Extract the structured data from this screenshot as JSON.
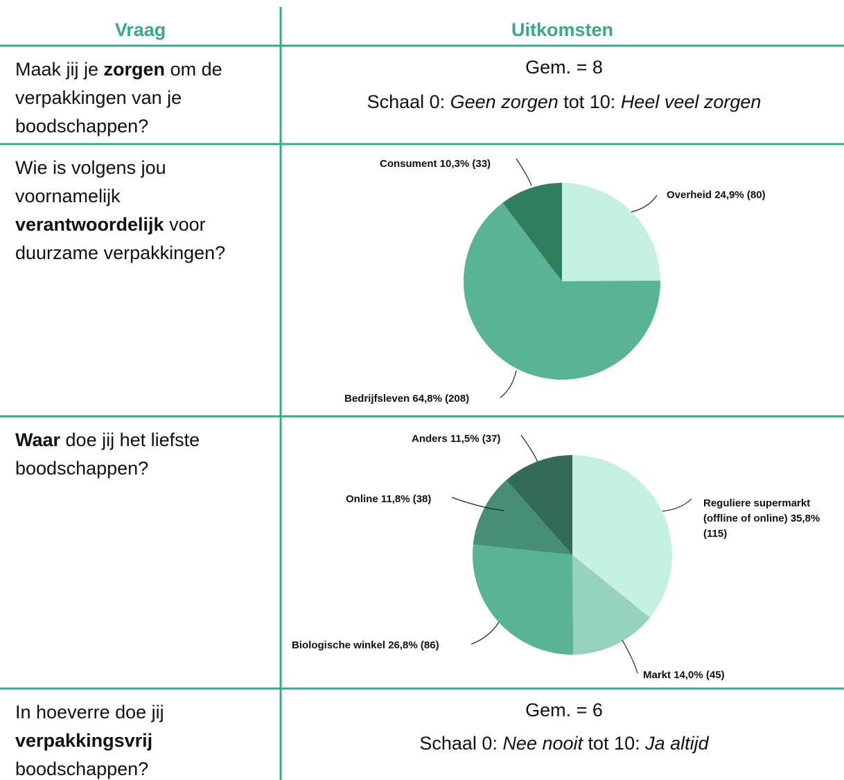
{
  "header": {
    "question": "Vraag",
    "results": "Uitkomsten"
  },
  "rows": [
    {
      "question": [
        {
          "text": "Maak jij je "
        },
        {
          "text": "zorgen",
          "bold": true
        },
        {
          "text": " om de verpakkingen van je boodschappen?"
        }
      ],
      "result": {
        "mean": "Gem. = 8",
        "scale": [
          {
            "text": "Schaal 0: "
          },
          {
            "text": "Geen zorgen",
            "italic": true
          },
          {
            "text": " tot 10: "
          },
          {
            "text": "Heel veel zorgen",
            "italic": true
          }
        ]
      }
    },
    {
      "question": [
        {
          "text": "Wie is volgens jou voornamelijk "
        },
        {
          "text": "verantwoordelijk",
          "bold": true
        },
        {
          "text": " voor duurzame verpakkingen?"
        }
      ],
      "result": {
        "chart_data": {
          "type": "pie",
          "categories": [
            "Overheid",
            "Bedrijfsleven",
            "Consument"
          ],
          "values": [
            24.9,
            64.8,
            10.3
          ],
          "value_labels": [
            "24,9% (80)",
            "64,8% (208)",
            "10,3% (33)"
          ],
          "colors": [
            "#c6f0e2",
            "#5ab395",
            "#2f7f5e"
          ]
        }
      }
    },
    {
      "question": [
        {
          "text": "Waar",
          "bold": true
        },
        {
          "text": " doe jij het liefste boodschappen?"
        }
      ],
      "result": {
        "chart_data": {
          "type": "pie",
          "categories": [
            "Reguliere supermarkt (offline of online)",
            "Markt",
            "Biologische winkel",
            "Online",
            "Anders"
          ],
          "values": [
            35.8,
            14.0,
            26.8,
            11.8,
            11.5
          ],
          "value_labels": [
            "35,8% (115)",
            "14,0% (45)",
            "26,8% (86)",
            "11,8% (38)",
            "11,5% (37)"
          ],
          "colors": [
            "#c6f0e2",
            "#96d3bf",
            "#5ab395",
            "#468f74",
            "#336b57"
          ]
        }
      }
    },
    {
      "question": [
        {
          "text": "In hoeverre doe jij "
        },
        {
          "text": "verpakkingsvrij",
          "bold": true
        },
        {
          "text": " boodschappen?"
        }
      ],
      "result": {
        "mean": "Gem. = 6",
        "scale": [
          {
            "text": "Schaal 0: "
          },
          {
            "text": "Nee nooit",
            "italic": true
          },
          {
            "text": " tot 10: "
          },
          {
            "text": "Ja altijd",
            "italic": true
          }
        ]
      }
    }
  ]
}
